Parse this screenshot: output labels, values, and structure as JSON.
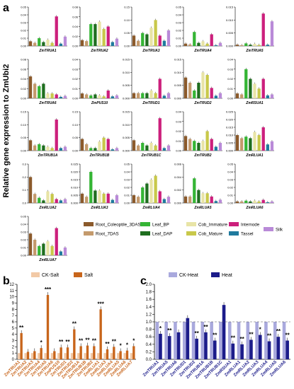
{
  "figure": {
    "panel_labels": [
      "a",
      "b",
      "c"
    ],
    "y_axis_label": "Relative gene expression to ZmUbi2"
  },
  "colors": {
    "tissues": [
      "#8b5a2b",
      "#c49a6c",
      "#35b535",
      "#1f6e1f",
      "#e8e4a6",
      "#c8c84a",
      "#cc1f7c",
      "#1f7a9e",
      "#b98ad8"
    ],
    "salt_ck": "#f2c9a6",
    "salt": "#c8651b",
    "heat_ck": "#a9a9dd",
    "heat": "#1c1c8a"
  },
  "chart_data": [
    {
      "type": "bar",
      "panel": "a",
      "series_names": [
        "Root_Coleoptile_3DAS",
        "Root_7DAS",
        "Leaf_BP",
        "Leaf_DAP",
        "Cob_Immature",
        "Cob_Mature",
        "Internode",
        "Tassel",
        "Silk"
      ],
      "legend_placement": "bottom-right of panel a",
      "subplots": [
        {
          "gene": "ZmTRUA1",
          "ylim": [
            0,
            0.05
          ],
          "ticks": [
            "0.00",
            "0.01",
            "0.02",
            "0.03",
            "0.04",
            "0.05"
          ],
          "values": [
            0.006,
            0.004,
            0.01,
            0.005,
            0.008,
            0.004,
            0.038,
            0.003,
            0.012
          ]
        },
        {
          "gene": "ZmTRUA2",
          "ylim": [
            0,
            0.08
          ],
          "ticks": [
            "0.00",
            "0.02",
            "0.04",
            "0.06",
            "0.08"
          ],
          "values": [
            0.012,
            0.01,
            0.045,
            0.045,
            0.05,
            0.035,
            0.04,
            0.008,
            0.015
          ]
        },
        {
          "gene": "ZmTRUA3",
          "ylim": [
            0,
            0.15
          ],
          "ticks": [
            "0.00",
            "0.05",
            "0.10",
            "0.15"
          ],
          "values": [
            0.04,
            0.02,
            0.05,
            0.045,
            0.07,
            0.1,
            0.04,
            0.02,
            0.06
          ]
        },
        {
          "gene": "ZmTRUA4",
          "ylim": [
            0,
            0.05
          ],
          "ticks": [
            "0.00",
            "0.01",
            "0.02",
            "0.03",
            "0.04",
            "0.05"
          ],
          "values": [
            0.003,
            0.002,
            0.018,
            0.004,
            0.006,
            0.003,
            0.015,
            0.001,
            0.004
          ]
        },
        {
          "gene": "ZmTRUA5",
          "ylim": [
            0,
            0.015
          ],
          "ticks": [
            "0.000",
            "0.005",
            "0.010",
            "0.015"
          ],
          "values": [
            0.0005,
            0.0003,
            0.001,
            0.0005,
            0.0008,
            0.0004,
            0.0125,
            0.0005,
            0.0095
          ]
        },
        {
          "gene": "ZmTRUA6",
          "ylim": [
            0,
            0.08
          ],
          "ticks": [
            "0.00",
            "0.02",
            "0.04",
            "0.06",
            "0.08"
          ],
          "values": [
            0.045,
            0.03,
            0.025,
            0.03,
            0.01,
            0.01,
            0.008,
            0.003,
            0.005
          ]
        },
        {
          "gene": "ZmPUS10",
          "ylim": [
            0,
            0.04
          ],
          "ticks": [
            "0.00",
            "0.01",
            "0.02",
            "0.03",
            "0.04"
          ],
          "values": [
            0.005,
            0.004,
            0.003,
            0.004,
            0.003,
            0.002,
            0.008,
            0.002,
            0.003
          ]
        },
        {
          "gene": "ZmTRUD1",
          "ylim": [
            0,
            0.015
          ],
          "ticks": [
            "0.000",
            "0.005",
            "0.010",
            "0.015"
          ],
          "values": [
            0.002,
            0.002,
            0.002,
            0.002,
            0.003,
            0.002,
            0.0075,
            0.001,
            0.002
          ]
        },
        {
          "gene": "ZmTRUD2",
          "ylim": [
            0,
            0.015
          ],
          "ticks": [
            "0.000",
            "0.005",
            "0.010",
            "0.015"
          ],
          "values": [
            0.008,
            0.006,
            0.003,
            0.006,
            0.01,
            0.009,
            0.004,
            0.001,
            0.002
          ]
        },
        {
          "gene": "ZmRSUA1",
          "ylim": [
            0,
            0.04
          ],
          "ticks": [
            "0.00",
            "0.01",
            "0.02",
            "0.03",
            "0.04"
          ],
          "values": [
            0.005,
            0.004,
            0.03,
            0.02,
            0.015,
            0.01,
            0.02,
            0.003,
            0.004
          ]
        },
        {
          "gene": "ZmTRUB1A",
          "ylim": [
            0,
            0.15
          ],
          "ticks": [
            "0.00",
            "0.05",
            "0.10",
            "0.15"
          ],
          "values": [
            0.04,
            0.02,
            0.025,
            0.02,
            0.015,
            0.01,
            0.12,
            0.01,
            0.015
          ]
        },
        {
          "gene": "ZmTRUB1B",
          "ylim": [
            0,
            0.15
          ],
          "ticks": [
            "0.00",
            "0.05",
            "0.10",
            "0.15"
          ],
          "values": [
            0.045,
            0.025,
            0.01,
            0.01,
            0.035,
            0.05,
            0.045,
            0.005,
            0.01
          ]
        },
        {
          "gene": "ZmTRUB1C",
          "ylim": [
            0,
            0.015
          ],
          "ticks": [
            "0.000",
            "0.005",
            "0.010",
            "0.015"
          ],
          "values": [
            0.004,
            0.002,
            0.003,
            0.002,
            0.003,
            0.002,
            0.0125,
            0.001,
            0.002
          ]
        },
        {
          "gene": "ZmTRUB2",
          "ylim": [
            0,
            0.04
          ],
          "ticks": [
            "0.00",
            "0.01",
            "0.02",
            "0.03",
            "0.04"
          ],
          "values": [
            0.015,
            0.012,
            0.01,
            0.008,
            0.01,
            0.02,
            0.012,
            0.004,
            0.008
          ]
        },
        {
          "gene": "ZmRLUA1",
          "ylim": [
            0,
            0.025
          ],
          "ticks": [
            "0.000",
            "0.005",
            "0.010",
            "0.015",
            "0.020",
            "0.025"
          ],
          "values": [
            0.01,
            0.008,
            0.009,
            0.008,
            0.012,
            0.01,
            0.015,
            0.004,
            0.006
          ]
        },
        {
          "gene": "ZmRLUA2",
          "ylim": [
            0,
            0.3
          ],
          "ticks": [
            "0.0",
            "0.1",
            "0.2",
            "0.3"
          ],
          "values": [
            0.2,
            0.07,
            0.04,
            0.02,
            0.09,
            0.07,
            0.03,
            0.02,
            0.03
          ]
        },
        {
          "gene": "ZmRLUA3",
          "ylim": [
            0,
            0.025
          ],
          "ticks": [
            "0.000",
            "0.005",
            "0.010",
            "0.015",
            "0.020",
            "0.025"
          ],
          "values": [
            0.006,
            0.004,
            0.02,
            0.008,
            0.008,
            0.006,
            0.006,
            0.002,
            0.005
          ]
        },
        {
          "gene": "ZmRLUA4",
          "ylim": [
            0,
            0.05
          ],
          "ticks": [
            "0.00",
            "0.01",
            "0.02",
            "0.03",
            "0.04",
            "0.05"
          ],
          "values": [
            0.01,
            0.008,
            0.02,
            0.025,
            0.03,
            0.035,
            0.015,
            0.005,
            0.008
          ]
        },
        {
          "gene": "ZmRLUA5",
          "ylim": [
            0,
            0.006
          ],
          "ticks": [
            "0.000",
            "0.002",
            "0.004",
            "0.006"
          ],
          "values": [
            0.001,
            0.001,
            0.0038,
            0.002,
            0.0015,
            0.0015,
            0.001,
            0.0003,
            0.0005
          ]
        },
        {
          "gene": "ZmRLUA6",
          "ylim": [
            0,
            0.05
          ],
          "ticks": [
            "0.00",
            "0.01",
            "0.02",
            "0.03",
            "0.04",
            "0.05"
          ],
          "values": [
            0.002,
            0.002,
            0.003,
            0.002,
            0.003,
            0.002,
            0.004,
            0.001,
            0.002
          ]
        },
        {
          "gene": "ZmRLUA7",
          "ylim": [
            0,
            0.05
          ],
          "ticks": [
            "0.00",
            "0.01",
            "0.02",
            "0.03",
            "0.04",
            "0.05"
          ],
          "values": [
            0.028,
            0.02,
            0.012,
            0.015,
            0.018,
            0.012,
            0.035,
            0.005,
            0.01
          ]
        }
      ]
    },
    {
      "type": "bar",
      "panel": "b",
      "legend": [
        "CK-Salt",
        "Salt"
      ],
      "legend_placement": "top",
      "ylim": [
        0,
        12
      ],
      "yticks": [
        "0",
        "1",
        "2",
        "3",
        "4",
        "5",
        "6",
        "7",
        "8",
        "9",
        "10",
        "11",
        "12"
      ],
      "categories": [
        "ZmTRUA1",
        "ZmTRUA2",
        "ZmTRUA3",
        "ZmTRUA4",
        "ZmTRUA5",
        "ZmTRUA6",
        "ZmPUS10",
        "ZmTRUD1",
        "ZmTRUD2",
        "ZmTRUB1A",
        "ZmTRUB1B",
        "ZmTRUB2",
        "ZmRLUA1",
        "ZmRLUA3",
        "ZmRLUA4",
        "ZmRLUA5",
        "ZmRLUA6",
        "ZmRLUA7"
      ],
      "series": [
        {
          "name": "CK-Salt",
          "values": [
            1,
            1,
            1,
            1,
            1,
            1,
            1,
            1,
            1,
            1,
            1,
            1,
            1,
            1,
            1,
            1,
            1,
            1
          ]
        },
        {
          "name": "Salt",
          "values": [
            4.2,
            1.2,
            1.3,
            1.8,
            10.3,
            1.3,
            1.9,
            1.9,
            4.8,
            2.1,
            2.2,
            2.1,
            8.0,
            1.6,
            2.0,
            1.3,
            1.4,
            2.1
          ]
        }
      ],
      "annotations": [
        "**",
        "",
        "",
        "*",
        "***",
        "",
        "**",
        "**",
        "**",
        "**",
        "**",
        "**",
        "***",
        "**",
        "**",
        "*",
        "*",
        "*"
      ]
    },
    {
      "type": "bar",
      "panel": "c",
      "legend": [
        "CK-Heat",
        "Heat"
      ],
      "legend_placement": "top",
      "ylim": [
        0,
        2.0
      ],
      "yticks": [
        "0.0",
        "0.2",
        "0.4",
        "0.6",
        "0.8",
        "1.0",
        "1.2",
        "1.4",
        "1.6",
        "1.8",
        "2.0"
      ],
      "categories": [
        "ZmTRUA1",
        "ZmTRUA5",
        "ZmTRUA6",
        "ZmTRUD1",
        "ZmTRUD2",
        "ZmTRUB1A",
        "ZmTRUB1B",
        "ZmTRUB1C",
        "ZmRSUA1",
        "ZmRLUA1",
        "ZmRLUA2",
        "ZmRLUA3",
        "ZmRLUA4",
        "ZmRLUA5",
        "ZmRLUA6"
      ],
      "series": [
        {
          "name": "CK-Heat",
          "values": [
            1,
            1,
            1,
            1,
            1,
            1,
            1,
            1,
            1,
            1,
            1,
            1,
            1,
            1,
            1
          ]
        },
        {
          "name": "Heat",
          "values": [
            0.68,
            0.62,
            0.72,
            1.1,
            0.55,
            0.72,
            0.5,
            1.45,
            0.42,
            0.4,
            0.52,
            0.65,
            0.48,
            0.6,
            0.5
          ]
        }
      ],
      "annotations": [
        "*",
        "**",
        "",
        "",
        "**",
        "**",
        "**",
        "",
        "**",
        "**",
        "**",
        "*",
        "**",
        "**",
        "**"
      ]
    }
  ]
}
